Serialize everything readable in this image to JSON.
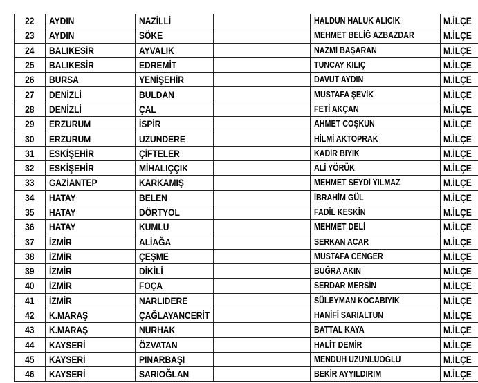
{
  "rows": [
    {
      "no": "22",
      "province": "AYDIN",
      "district": "NAZİLLİ",
      "blank": "",
      "name": "HALDUN HALUK ALICIK",
      "type": "M.İLÇE"
    },
    {
      "no": "23",
      "province": "AYDIN",
      "district": "SÖKE",
      "blank": "",
      "name": "MEHMET BELİĞ AZBAZDAR",
      "type": "M.İLÇE"
    },
    {
      "no": "24",
      "province": "BALIKESİR",
      "district": "AYVALIK",
      "blank": "",
      "name": "NAZMİ BAŞARAN",
      "type": "M.İLÇE"
    },
    {
      "no": "25",
      "province": "BALIKESİR",
      "district": "EDREMİT",
      "blank": "",
      "name": "TUNCAY KILIÇ",
      "type": "M.İLÇE"
    },
    {
      "no": "26",
      "province": "BURSA",
      "district": "YENİŞEHİR",
      "blank": "",
      "name": "DAVUT AYDIN",
      "type": "M.İLÇE"
    },
    {
      "no": "27",
      "province": "DENİZLİ",
      "district": "BULDAN",
      "blank": "",
      "name": "MUSTAFA ŞEVİK",
      "type": "M.İLÇE"
    },
    {
      "no": "28",
      "province": "DENİZLİ",
      "district": "ÇAL",
      "blank": "",
      "name": "FETİ AKÇAN",
      "type": "M.İLÇE"
    },
    {
      "no": "29",
      "province": "ERZURUM",
      "district": "İSPİR",
      "blank": "",
      "name": "AHMET COŞKUN",
      "type": "M.İLÇE"
    },
    {
      "no": "30",
      "province": "ERZURUM",
      "district": "UZUNDERE",
      "blank": "",
      "name": "HİLMİ AKTOPRAK",
      "type": "M.İLÇE"
    },
    {
      "no": "31",
      "province": "ESKİŞEHİR",
      "district": "ÇİFTELER",
      "blank": "",
      "name": "KADİR BIYIK",
      "type": "M.İLÇE"
    },
    {
      "no": "32",
      "province": "ESKİŞEHİR",
      "district": "MİHALIÇÇIK",
      "blank": "",
      "name": "ALİ YÖRÜK",
      "type": "M.İLÇE"
    },
    {
      "no": "33",
      "province": "GAZİANTEP",
      "district": "KARKAMIŞ",
      "blank": "",
      "name": "MEHMET SEYDİ YILMAZ",
      "type": "M.İLÇE"
    },
    {
      "no": "34",
      "province": "HATAY",
      "district": "BELEN",
      "blank": "",
      "name": "İBRAHİM GÜL",
      "type": "M.İLÇE"
    },
    {
      "no": "35",
      "province": "HATAY",
      "district": "DÖRTYOL",
      "blank": "",
      "name": "FADİL KESKİN",
      "type": "M.İLÇE"
    },
    {
      "no": "36",
      "province": "HATAY",
      "district": "KUMLU",
      "blank": "",
      "name": "MEHMET DELİ",
      "type": "M.İLÇE"
    },
    {
      "no": "37",
      "province": "İZMİR",
      "district": "ALİAĞA",
      "blank": "",
      "name": "SERKAN ACAR",
      "type": "M.İLÇE"
    },
    {
      "no": "38",
      "province": "İZMİR",
      "district": "ÇEŞME",
      "blank": "",
      "name": "MUSTAFA CENGER",
      "type": "M.İLÇE"
    },
    {
      "no": "39",
      "province": "İZMİR",
      "district": "DİKİLİ",
      "blank": "",
      "name": "BUĞRA AKIN",
      "type": "M.İLÇE"
    },
    {
      "no": "40",
      "province": "İZMİR",
      "district": "FOÇA",
      "blank": "",
      "name": "SERDAR MERSİN",
      "type": "M.İLÇE"
    },
    {
      "no": "41",
      "province": "İZMİR",
      "district": "NARLIDERE",
      "blank": "",
      "name": "SÜLEYMAN KOCABIYIK",
      "type": "M.İLÇE"
    },
    {
      "no": "42",
      "province": "K.MARAŞ",
      "district": "ÇAĞLAYANCERİT",
      "blank": "",
      "name": "HANİFİ SARIALTUN",
      "type": "M.İLÇE"
    },
    {
      "no": "43",
      "province": "K.MARAŞ",
      "district": "NURHAK",
      "blank": "",
      "name": "BATTAL KAYA",
      "type": "M.İLÇE"
    },
    {
      "no": "44",
      "province": "KAYSERİ",
      "district": "ÖZVATAN",
      "blank": "",
      "name": "HALİT DEMİR",
      "type": "M.İLÇE"
    },
    {
      "no": "45",
      "province": "KAYSERİ",
      "district": "PINARBAŞI",
      "blank": "",
      "name": "MENDUH UZUNLUOĞLU",
      "type": "M.İLÇE"
    },
    {
      "no": "46",
      "province": "KAYSERİ",
      "district": "SARIOĞLAN",
      "blank": "",
      "name": "BEKİR AYYILDIRIM",
      "type": "M.İLÇE"
    }
  ]
}
